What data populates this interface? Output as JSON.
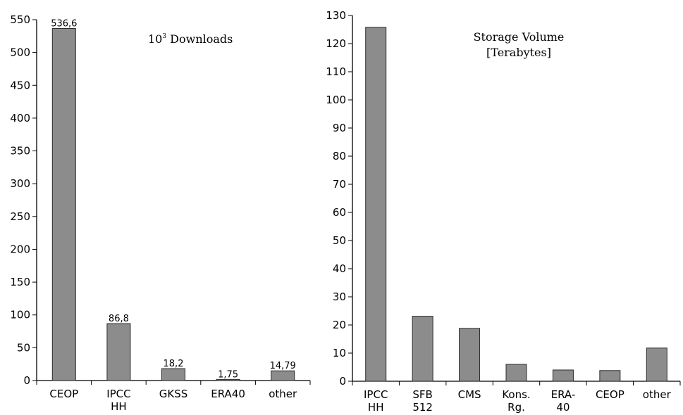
{
  "chart_data": [
    {
      "type": "bar",
      "title_base": "10",
      "title_sup": "3",
      "title_rest": " Downloads",
      "categories": [
        [
          "CEOP"
        ],
        [
          "IPCC",
          "HH"
        ],
        [
          "GKSS"
        ],
        [
          "ERA40"
        ],
        [
          "other"
        ]
      ],
      "values": [
        536.6,
        86.8,
        18.2,
        1.75,
        14.79
      ],
      "data_labels": [
        "536,6",
        "86,8",
        "18,2",
        "1,75",
        "14,79"
      ],
      "ylim": [
        0,
        550
      ],
      "yticks": [
        0,
        50,
        100,
        150,
        200,
        250,
        300,
        350,
        400,
        450,
        500,
        550
      ],
      "grid": false,
      "xlabel": "",
      "ylabel": ""
    },
    {
      "type": "bar",
      "title_lines": [
        "Storage Volume",
        "[Terabytes]"
      ],
      "categories": [
        [
          "IPCC",
          "HH"
        ],
        [
          "SFB",
          "512"
        ],
        [
          "CMS"
        ],
        [
          "Kons.",
          "Rg."
        ],
        [
          "ERA-",
          "40"
        ],
        [
          "CEOP"
        ],
        [
          "other"
        ]
      ],
      "values": [
        125.8,
        23.1,
        18.8,
        6.0,
        4.0,
        3.8,
        11.8
      ],
      "ylim": [
        0,
        130
      ],
      "yticks": [
        0,
        10,
        20,
        30,
        40,
        50,
        60,
        70,
        80,
        90,
        100,
        110,
        120,
        130
      ],
      "grid": false,
      "xlabel": "",
      "ylabel": ""
    }
  ]
}
